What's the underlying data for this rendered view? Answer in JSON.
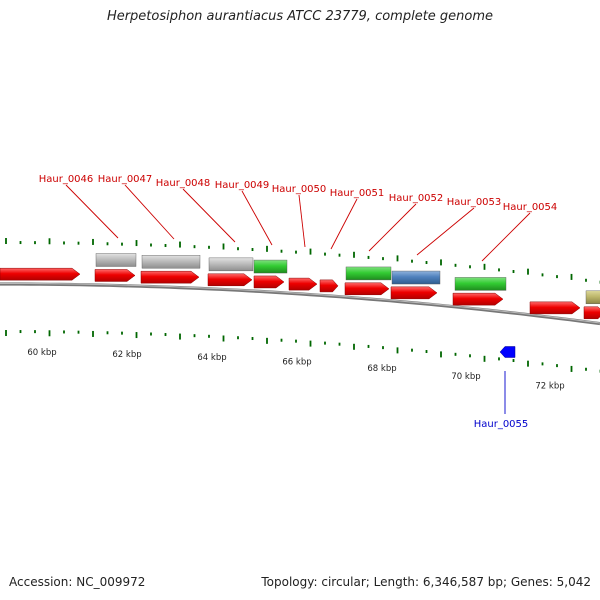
{
  "title": "Herpetosiphon aurantiacus ATCC 23779, complete genome",
  "footer": {
    "accession": "Accession: NC_009972",
    "summary": "Topology: circular; Length: 6,346,587 bp; Genes: 5,042"
  },
  "colors": {
    "forward_gene": "#ff0000",
    "grey_gene": "#bbbbbb",
    "green_gene": "#33cc33",
    "blue_gene": "#4f81bd",
    "olive_gene": "#bdb76b",
    "reverse_gene": "#0000ff",
    "label_forward": "#cc0000",
    "label_reverse": "#0000cc",
    "tick": "#006600",
    "backbone": "#888888"
  },
  "scale": {
    "unit": "kbp",
    "labels": [
      "60 kbp",
      "62 kbp",
      "64 kbp",
      "66 kbp",
      "68 kbp",
      "70 kbp",
      "72 kbp"
    ]
  },
  "genes": {
    "top_labels": [
      "Haur_0046",
      "Haur_0047",
      "Haur_0048",
      "Haur_0049",
      "Haur_0050",
      "Haur_0051",
      "Haur_0052",
      "Haur_0053",
      "Haur_0054"
    ],
    "bottom_labels": [
      "Haur_0055"
    ]
  }
}
